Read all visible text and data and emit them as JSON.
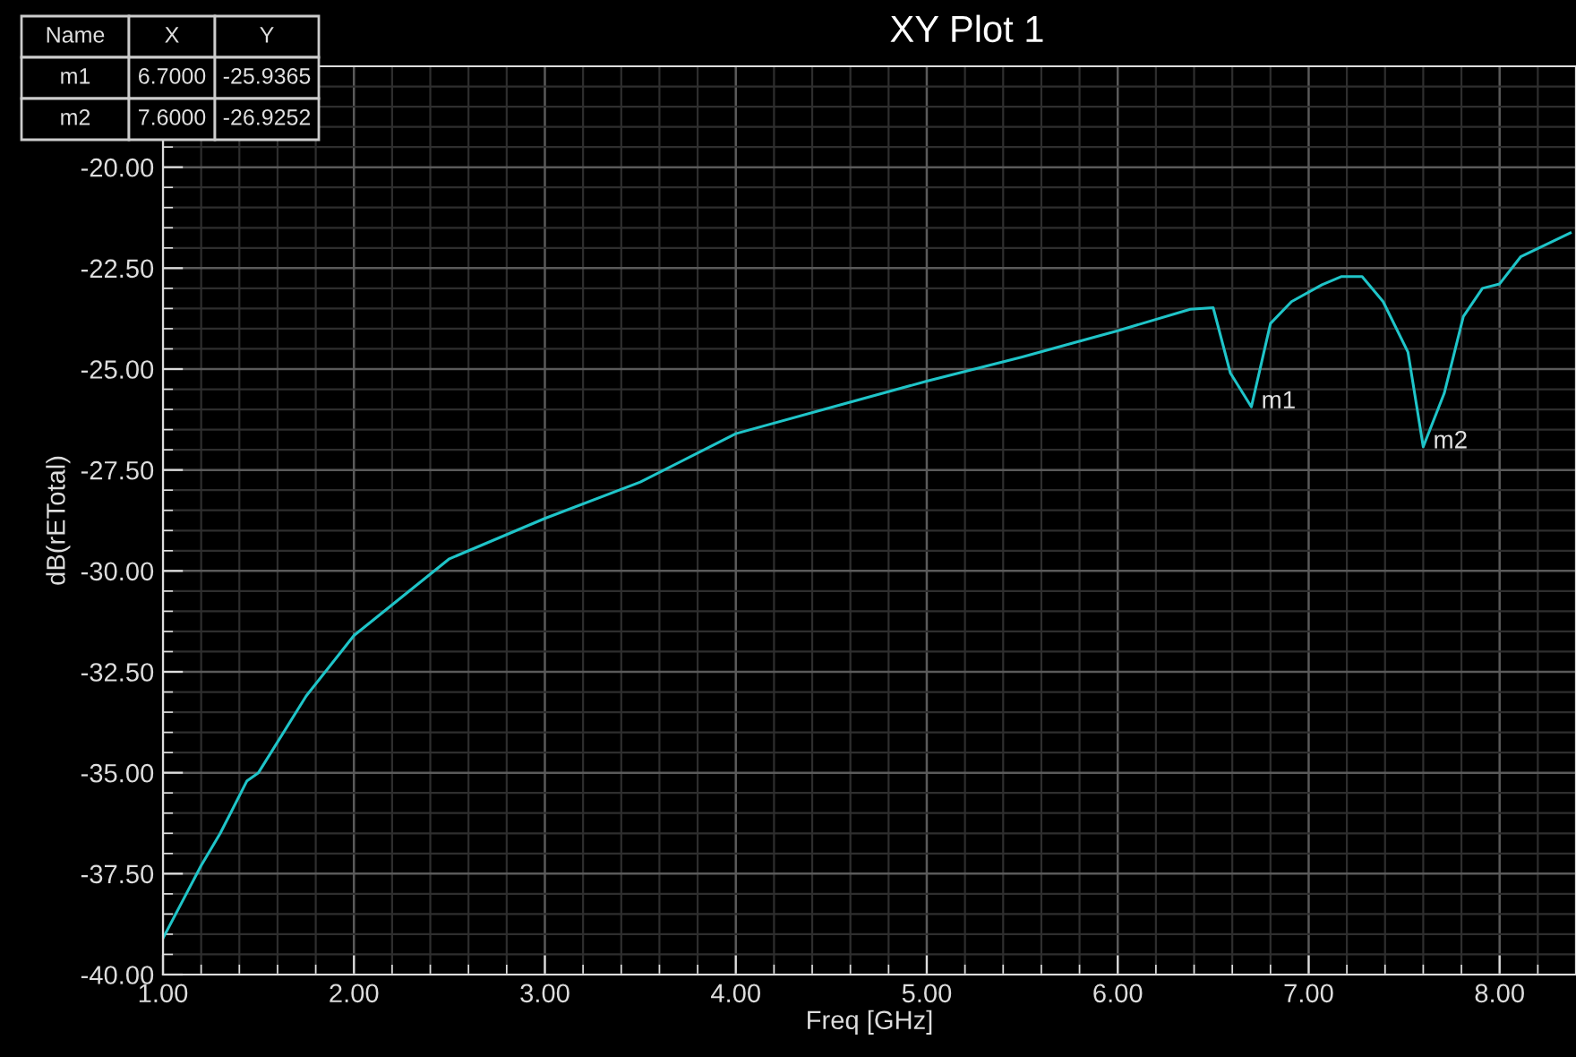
{
  "chart_data": {
    "type": "line",
    "title": "XY Plot 1",
    "xlabel": "Freq [GHz]",
    "ylabel": "dB(rETotal)",
    "x": [
      1.0,
      1.1,
      1.2,
      1.3,
      1.44,
      1.5,
      1.75,
      2.0,
      2.5,
      3.0,
      3.5,
      4.0,
      4.5,
      5.0,
      5.5,
      5.76,
      6.0,
      6.38,
      6.5,
      6.59,
      6.7,
      6.8,
      6.91,
      7.07,
      7.17,
      7.28,
      7.39,
      7.52,
      7.6,
      7.71,
      7.81,
      7.91,
      8.0,
      8.11,
      8.37
    ],
    "series": [
      {
        "color": "#1fc4c8",
        "values": [
          -39.1,
          -38.2,
          -37.3,
          -36.5,
          -35.2,
          -35.0,
          -33.1,
          -31.6,
          -29.7,
          -28.7,
          -27.8,
          -26.6,
          -25.95,
          -25.3,
          -24.7,
          -24.36,
          -24.05,
          -23.52,
          -23.48,
          -25.1,
          -25.9365,
          -23.87,
          -23.33,
          -22.91,
          -22.71,
          -22.71,
          -23.33,
          -24.58,
          -26.9252,
          -25.6,
          -23.7,
          -23.0,
          -22.89,
          -22.22,
          -21.63
        ]
      }
    ],
    "xlim": [
      1.0,
      8.4
    ],
    "ylim": [
      -40.0,
      -17.5
    ],
    "xticks": [
      {
        "value": 1,
        "label": "1.00"
      },
      {
        "value": 2,
        "label": "2.00"
      },
      {
        "value": 3,
        "label": "3.00"
      },
      {
        "value": 4,
        "label": "4.00"
      },
      {
        "value": 5,
        "label": "5.00"
      },
      {
        "value": 6,
        "label": "6.00"
      },
      {
        "value": 7,
        "label": "7.00"
      },
      {
        "value": 8,
        "label": "8.00"
      }
    ],
    "yticks": [
      {
        "value": -40,
        "label": "-40.00"
      },
      {
        "value": -37.5,
        "label": "-37.50"
      },
      {
        "value": -35,
        "label": "-35.00"
      },
      {
        "value": -32.5,
        "label": "-32.50"
      },
      {
        "value": -30,
        "label": "-30.00"
      },
      {
        "value": -27.5,
        "label": "-27.50"
      },
      {
        "value": -25,
        "label": "-25.00"
      },
      {
        "value": -22.5,
        "label": "-22.50"
      },
      {
        "value": -20,
        "label": "-20.00"
      }
    ],
    "grid": true,
    "legend": false,
    "line_style": "solid",
    "marker": "none",
    "annotations": [
      {
        "text": "m1",
        "x": 6.7,
        "y": -25.9365
      },
      {
        "text": "m2",
        "x": 7.6,
        "y": -26.9252
      },
      "Name",
      "X",
      "Y",
      "m1",
      "6.7000",
      "-25.9365",
      "m2",
      "7.6000",
      "-26.9252"
    ]
  }
}
